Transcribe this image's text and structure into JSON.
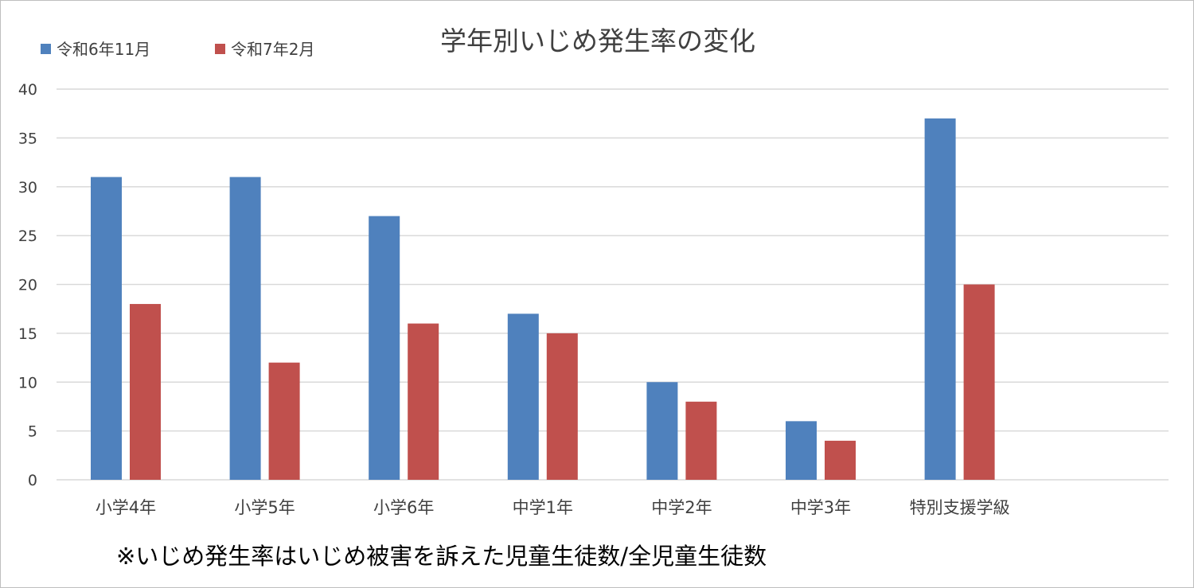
{
  "chart_data": {
    "type": "bar",
    "title": "学年別いじめ発生率の変化",
    "footnote": "※いじめ発生率はいじめ被害を訴えた児童生徒数/全児童生徒数",
    "categories": [
      "小学4年",
      "小学5年",
      "小学6年",
      "中学1年",
      "中学2年",
      "中学3年",
      "特別支援学級"
    ],
    "series": [
      {
        "name": "令和6年11月",
        "color": "#4f81bd",
        "values": [
          31,
          31,
          27,
          17,
          10,
          6,
          37
        ]
      },
      {
        "name": "令和7年2月",
        "color": "#c0504d",
        "values": [
          18,
          12,
          16,
          15,
          8,
          4,
          20
        ]
      }
    ],
    "ylim": [
      0,
      40
    ],
    "yticks": [
      0,
      5,
      10,
      15,
      20,
      25,
      30,
      35,
      40
    ],
    "grid": true,
    "legend_position": "top-left",
    "gridline_color": "#d9d9d9",
    "text_color": "#404040"
  }
}
